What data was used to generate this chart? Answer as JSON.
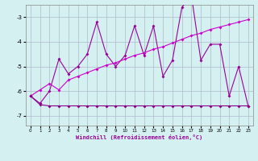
{
  "x": [
    0,
    1,
    2,
    3,
    4,
    5,
    6,
    7,
    8,
    9,
    10,
    11,
    12,
    13,
    14,
    15,
    16,
    17,
    18,
    19,
    20,
    21,
    22,
    23
  ],
  "line1": [
    -6.2,
    -6.5,
    -6.0,
    -4.7,
    -5.3,
    -5.0,
    -4.5,
    -3.2,
    -4.5,
    -5.0,
    -4.55,
    -3.35,
    -4.55,
    -3.35,
    -5.4,
    -4.75,
    -2.6,
    -2.1,
    -4.75,
    -4.1,
    -4.1,
    -6.2,
    -5.0,
    -6.6
  ],
  "line2_slope": [
    -6.2,
    -5.95,
    -5.7,
    -5.95,
    -5.55,
    -5.4,
    -5.25,
    -5.1,
    -4.95,
    -4.85,
    -4.7,
    -4.55,
    -4.45,
    -4.3,
    -4.2,
    -4.05,
    -3.9,
    -3.75,
    -3.65,
    -3.5,
    -3.4,
    -3.3,
    -3.2,
    -3.1
  ],
  "line3_flat": [
    -6.2,
    -6.55,
    -6.6,
    -6.6,
    -6.6,
    -6.6,
    -6.6,
    -6.6,
    -6.6,
    -6.6,
    -6.6,
    -6.6,
    -6.6,
    -6.6,
    -6.6,
    -6.6,
    -6.6,
    -6.6,
    -6.6,
    -6.6,
    -6.6,
    -6.6,
    -6.6,
    -6.6
  ],
  "color_line1": "#990099",
  "color_line2": "#cc00cc",
  "color_line3": "#880088",
  "bg_color": "#d4f0f0",
  "grid_color": "#b0b8cc",
  "xlabel": "Windchill (Refroidissement éolien,°C)",
  "ylim": [
    -7.4,
    -2.5
  ],
  "xlim": [
    -0.5,
    23.5
  ],
  "yticks": [
    -7,
    -6,
    -5,
    -4,
    -3
  ],
  "xticks": [
    0,
    1,
    2,
    3,
    4,
    5,
    6,
    7,
    8,
    9,
    10,
    11,
    12,
    13,
    14,
    15,
    16,
    17,
    18,
    19,
    20,
    21,
    22,
    23
  ]
}
